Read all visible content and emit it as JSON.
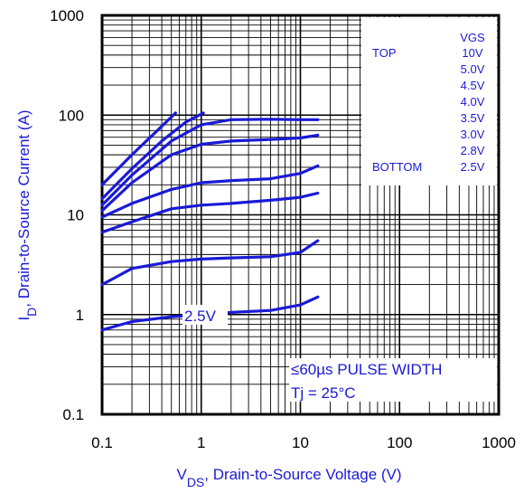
{
  "chart_data": {
    "type": "line",
    "x_scale": "log",
    "y_scale": "log",
    "xlim": [
      0.1,
      1000
    ],
    "ylim": [
      0.1,
      1000
    ],
    "grid": true,
    "x_ticks": [
      "0.1",
      "1",
      "10",
      "100",
      "1000"
    ],
    "y_ticks": [
      "0.1",
      "1",
      "10",
      "100",
      "1000"
    ],
    "xlabel": {
      "main": "V",
      "sub": "DS",
      "rest": ", Drain-to-Source Voltage (V)"
    },
    "ylabel": {
      "main": "I",
      "sub": "D",
      "rest": ", Drain-to-Source Current (A)"
    },
    "legend": {
      "header": "VGS",
      "top_label": "TOP",
      "bottom_label": "BOTTOM",
      "entries": [
        "10V",
        "5.0V",
        "4.5V",
        "4.0V",
        "3.5V",
        "3.0V",
        "2.8V",
        "2.5V"
      ]
    },
    "annotations": {
      "curve_label": "2.5V",
      "pulse": "≤60µs PULSE WIDTH",
      "tj": "Tj = 25°C"
    },
    "series": [
      {
        "x": [
          0.1,
          0.2,
          0.35,
          0.55
        ],
        "y": [
          20,
          40,
          68,
          105
        ]
      },
      {
        "x": [
          0.1,
          0.2,
          0.4,
          0.7,
          1.05
        ],
        "y": [
          14.5,
          29,
          55,
          85,
          105
        ]
      },
      {
        "x": [
          0.1,
          0.2,
          0.5,
          1,
          2,
          5,
          10,
          15
        ],
        "y": [
          12.5,
          25,
          55,
          80,
          90,
          91,
          90,
          90
        ]
      },
      {
        "x": [
          0.1,
          0.2,
          0.5,
          1,
          2,
          5,
          10,
          15
        ],
        "y": [
          11,
          21,
          40,
          51,
          55,
          57,
          59,
          63
        ]
      },
      {
        "x": [
          0.1,
          0.2,
          0.5,
          1,
          2,
          5,
          10,
          15
        ],
        "y": [
          9.5,
          13,
          18,
          21,
          22,
          23,
          26,
          31
        ]
      },
      {
        "x": [
          0.1,
          0.2,
          0.5,
          1,
          2,
          5,
          10,
          15
        ],
        "y": [
          6.7,
          8.5,
          11.5,
          12.5,
          13,
          14,
          15,
          16.5
        ]
      },
      {
        "x": [
          0.1,
          0.2,
          0.5,
          1,
          2,
          5,
          10,
          15
        ],
        "y": [
          2,
          2.9,
          3.4,
          3.6,
          3.7,
          3.8,
          4.2,
          5.5
        ]
      },
      {
        "x": [
          0.1,
          0.2,
          0.5,
          1,
          2,
          5,
          10,
          15
        ],
        "y": [
          0.7,
          0.85,
          0.95,
          1.0,
          1.05,
          1.1,
          1.25,
          1.5
        ]
      }
    ],
    "colors": {
      "series": "#1a1ad6",
      "grid": "#000000"
    }
  }
}
